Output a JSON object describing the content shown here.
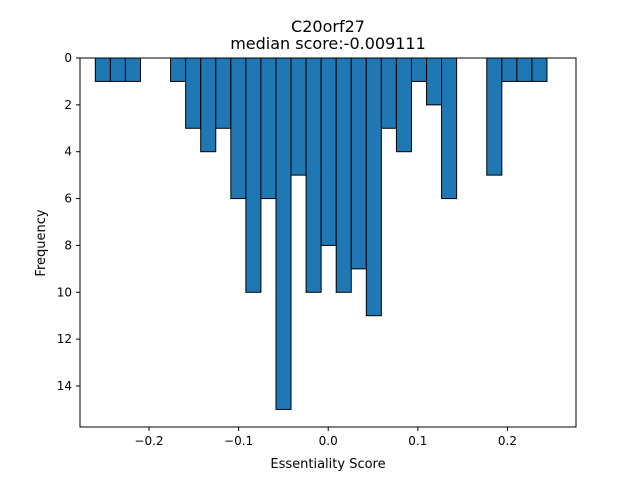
{
  "chart_data": {
    "type": "bar",
    "title": "C20orf27",
    "subtitle": "median score:-0.009111",
    "xlabel": "Essentiality Score",
    "ylabel": "Frequency",
    "bar_color": "#1f77b4",
    "edge_color": "#000000",
    "x_axis": {
      "range": [
        -0.277,
        0.2765
      ],
      "ticks": [
        -0.2,
        -0.1,
        0.0,
        0.1,
        0.2
      ],
      "tick_labels": [
        "−0.2",
        "−0.1",
        "0.0",
        "0.1",
        "0.2"
      ]
    },
    "y_axis": {
      "range": [
        0,
        15.75
      ],
      "inverted": true,
      "ticks": [
        0,
        2,
        4,
        6,
        8,
        10,
        12,
        14
      ],
      "tick_labels": [
        "0",
        "2",
        "4",
        "6",
        "8",
        "10",
        "12",
        "14"
      ]
    },
    "bin_width": 0.0168,
    "bins": [
      {
        "center": -0.2515,
        "count": 1
      },
      {
        "center": -0.2347,
        "count": 1
      },
      {
        "center": -0.2179,
        "count": 1
      },
      {
        "center": -0.1675,
        "count": 1
      },
      {
        "center": -0.1507,
        "count": 3
      },
      {
        "center": -0.1339,
        "count": 4
      },
      {
        "center": -0.1171,
        "count": 3
      },
      {
        "center": -0.1003,
        "count": 6
      },
      {
        "center": -0.0835,
        "count": 10
      },
      {
        "center": -0.0667,
        "count": 6
      },
      {
        "center": -0.0499,
        "count": 15
      },
      {
        "center": -0.0331,
        "count": 5
      },
      {
        "center": -0.0163,
        "count": 10
      },
      {
        "center": 0.0005,
        "count": 8
      },
      {
        "center": 0.0173,
        "count": 10
      },
      {
        "center": 0.0341,
        "count": 9
      },
      {
        "center": 0.0509,
        "count": 11
      },
      {
        "center": 0.0677,
        "count": 3
      },
      {
        "center": 0.0845,
        "count": 4
      },
      {
        "center": 0.1013,
        "count": 1
      },
      {
        "center": 0.1181,
        "count": 2
      },
      {
        "center": 0.1349,
        "count": 6
      },
      {
        "center": 0.1853,
        "count": 5
      },
      {
        "center": 0.2021,
        "count": 1
      },
      {
        "center": 0.2189,
        "count": 1
      },
      {
        "center": 0.2357,
        "count": 1
      }
    ]
  }
}
